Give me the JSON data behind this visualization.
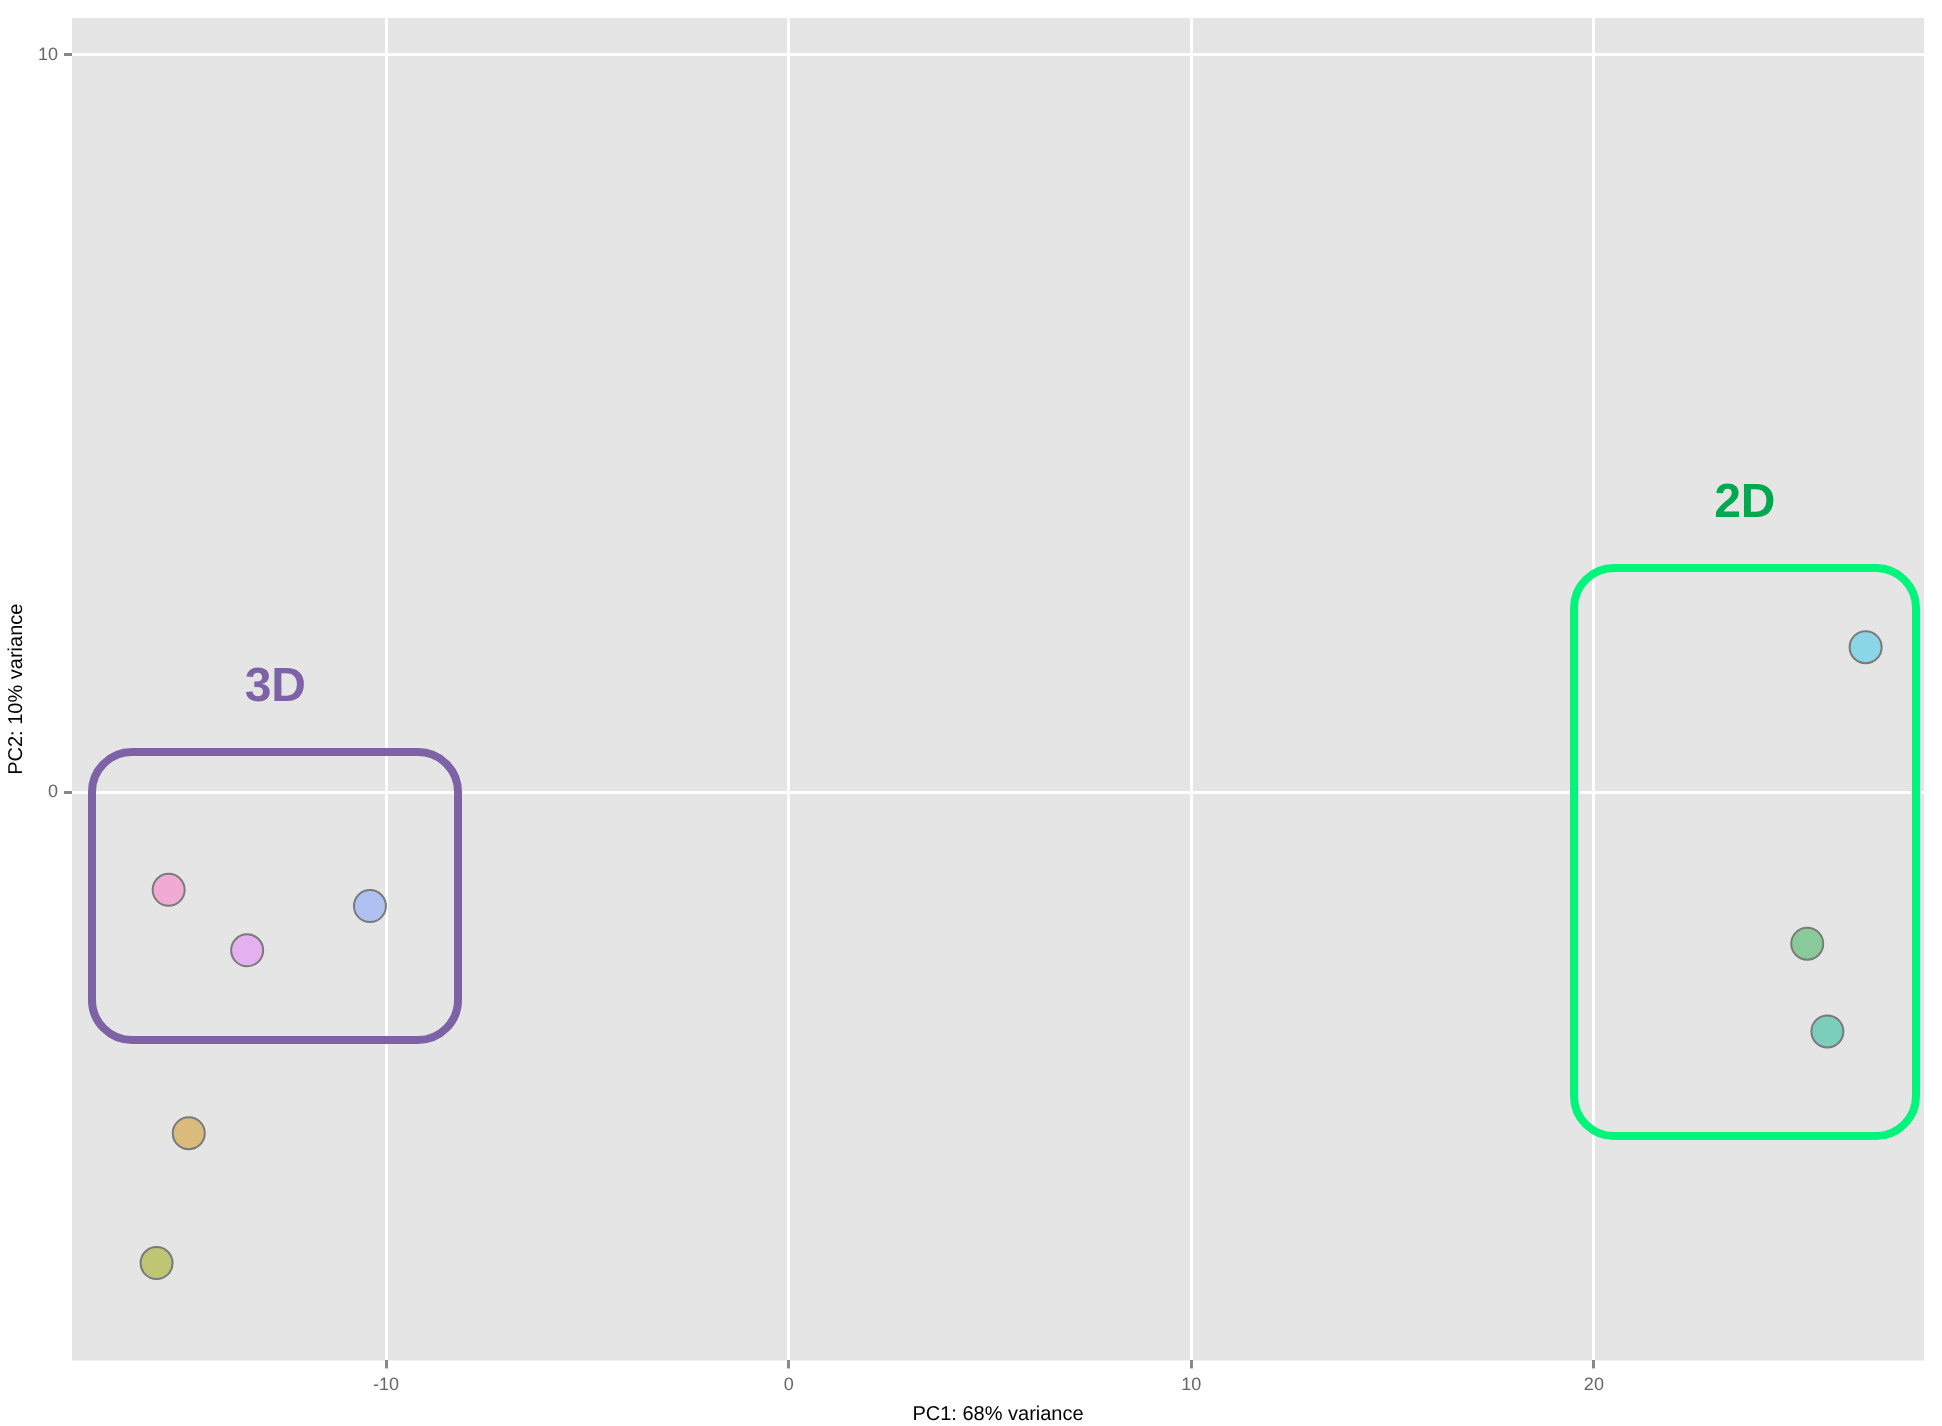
{
  "chart_data": {
    "type": "scatter",
    "xlabel": "PC1: 68% variance",
    "ylabel": "PC2: 10% variance",
    "x": [
      -15.4,
      -13.45,
      -10.4,
      -14.9,
      -15.7,
      26.75,
      25.3,
      25.8
    ],
    "values": [
      -1.32,
      -2.14,
      -1.54,
      -4.62,
      -6.38,
      1.97,
      -2.05,
      -3.24
    ],
    "colors": [
      "#f39bd0",
      "#e3a2f2",
      "#a0b8f2",
      "#d8b062",
      "#b5bd55",
      "#74d2e6",
      "#72c484",
      "#62c8b2"
    ],
    "xlim": [
      -17.8,
      28.2
    ],
    "xticks": [
      -10,
      0,
      10,
      20
    ],
    "ylim": [
      -7.7,
      10.5
    ],
    "yticks": [
      0,
      10
    ],
    "grid": true,
    "legend": false,
    "marker": "circle",
    "annotations": [
      "3D",
      "2D"
    ]
  }
}
